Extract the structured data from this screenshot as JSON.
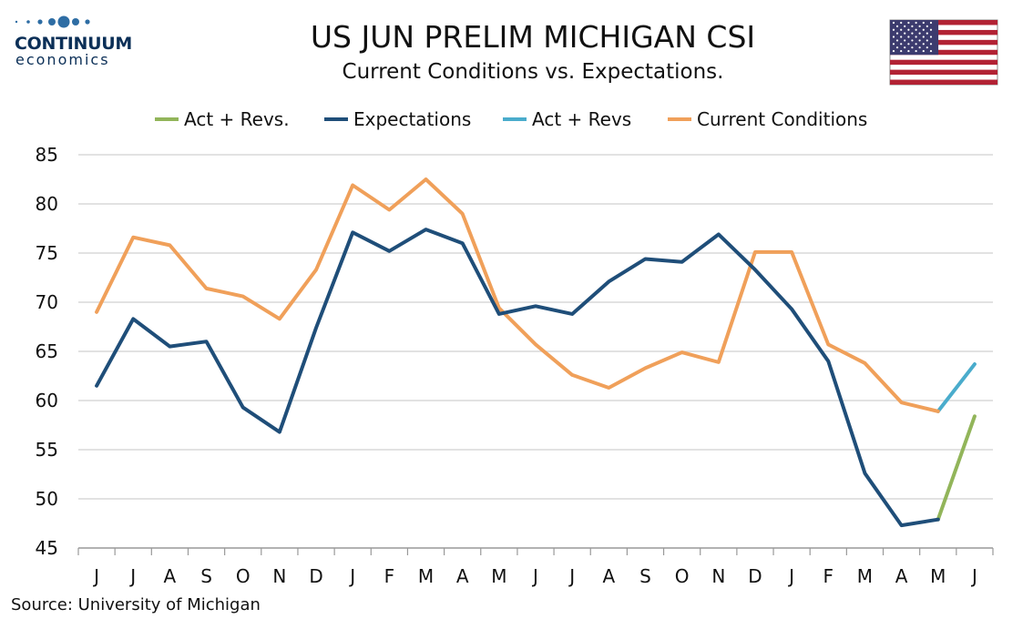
{
  "logo": {
    "line1": "CONTINUUM",
    "line2": "economics"
  },
  "flag": {
    "name": "us-flag-icon"
  },
  "source": "Source: University of Michigan",
  "colors": {
    "expectations": "#1f4e79",
    "current": "#f0a05a",
    "act_revs_green": "#92b55a",
    "act_revs_teal": "#4aaccc",
    "grid": "#d9d9d9",
    "axis": "#999999",
    "logo_dots": "#2e6da4"
  },
  "chart_data": {
    "type": "line",
    "title": "US JUN PRELIM MICHIGAN CSI",
    "subtitle": "Current Conditions vs. Expectations.",
    "categories": [
      "J",
      "J",
      "A",
      "S",
      "O",
      "N",
      "D",
      "J",
      "F",
      "M",
      "A",
      "M",
      "J",
      "J",
      "A",
      "S",
      "O",
      "N",
      "D",
      "J",
      "F",
      "M",
      "A",
      "M",
      "J"
    ],
    "ylim": [
      45,
      85
    ],
    "yticks": [
      45,
      50,
      55,
      60,
      65,
      70,
      75,
      80,
      85
    ],
    "grid": true,
    "legend_position": "top",
    "series": [
      {
        "key": "act_revs_green",
        "name": "Act + Revs.",
        "color": "#92b55a",
        "values": [
          null,
          null,
          null,
          null,
          null,
          null,
          null,
          null,
          null,
          null,
          null,
          null,
          null,
          null,
          null,
          null,
          null,
          null,
          null,
          null,
          null,
          null,
          null,
          47.9,
          58.4
        ]
      },
      {
        "key": "expectations",
        "name": "Expectations",
        "color": "#1f4e79",
        "values": [
          61.5,
          68.3,
          65.5,
          66.0,
          59.3,
          56.8,
          67.4,
          77.1,
          75.2,
          77.4,
          76.0,
          68.8,
          69.6,
          68.8,
          72.1,
          74.4,
          74.1,
          76.9,
          73.3,
          69.3,
          64.0,
          52.6,
          47.3,
          47.9,
          null
        ]
      },
      {
        "key": "act_revs_teal",
        "name": "Act + Revs",
        "color": "#4aaccc",
        "values": [
          null,
          null,
          null,
          null,
          null,
          null,
          null,
          null,
          null,
          null,
          null,
          null,
          null,
          null,
          null,
          null,
          null,
          null,
          null,
          null,
          null,
          null,
          null,
          58.9,
          63.7
        ]
      },
      {
        "key": "current",
        "name": "Current Conditions",
        "color": "#f0a05a",
        "values": [
          69.0,
          76.6,
          75.8,
          71.4,
          70.6,
          68.3,
          73.3,
          81.9,
          79.4,
          82.5,
          79.0,
          69.4,
          65.7,
          62.6,
          61.3,
          63.3,
          64.9,
          63.9,
          75.1,
          75.1,
          65.7,
          63.8,
          59.8,
          58.9,
          null
        ]
      }
    ]
  }
}
